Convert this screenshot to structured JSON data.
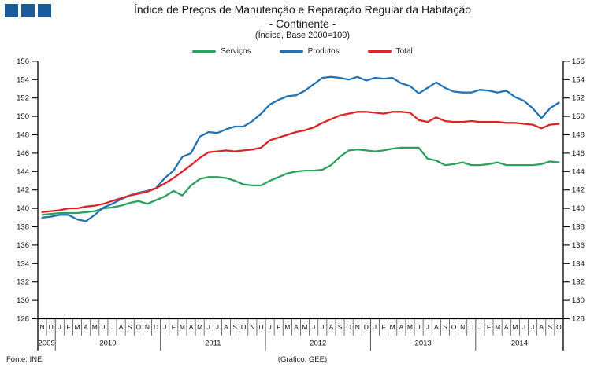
{
  "header": {
    "title_line1": "Índice de Preços de Manutenção e Reparação Regular da Habitação",
    "title_line2": "- Continente -",
    "subtitle": "(Índice, Base 2000=100)",
    "logo_color": "#1b5b97"
  },
  "footer": {
    "source": "Fonte: INE",
    "credit": "(Gráfico: GEE)"
  },
  "chart_data": {
    "type": "line",
    "title": "Índice de Preços de Manutenção e Reparação Regular da Habitação - Continente",
    "subtitle": "(Índice, Base 2000=100)",
    "ylim": [
      128,
      156
    ],
    "ytick_step": 2,
    "grid": false,
    "legend_position": "top-center",
    "x_months": [
      "N",
      "D",
      "J",
      "F",
      "M",
      "A",
      "M",
      "J",
      "J",
      "A",
      "S",
      "O",
      "N",
      "D",
      "J",
      "F",
      "M",
      "A",
      "M",
      "J",
      "J",
      "A",
      "S",
      "O",
      "N",
      "D",
      "J",
      "F",
      "M",
      "A",
      "M",
      "J",
      "J",
      "A",
      "S",
      "O",
      "N",
      "D",
      "J",
      "F",
      "M",
      "A",
      "M",
      "J",
      "J",
      "A",
      "S",
      "O",
      "N",
      "D",
      "J",
      "F",
      "M",
      "A",
      "M",
      "J",
      "J",
      "A",
      "S",
      "O"
    ],
    "x_years": [
      {
        "label": "2009",
        "months": 2
      },
      {
        "label": "2010",
        "months": 12
      },
      {
        "label": "2011",
        "months": 12
      },
      {
        "label": "2012",
        "months": 12
      },
      {
        "label": "2013",
        "months": 12
      },
      {
        "label": "2014",
        "months": 10
      }
    ],
    "series": [
      {
        "name": "Serviços",
        "color": "#2aa15d",
        "values": [
          139.3,
          139.4,
          139.5,
          139.5,
          139.5,
          139.6,
          139.7,
          140.0,
          140.1,
          140.3,
          140.6,
          140.8,
          140.5,
          140.9,
          141.3,
          141.9,
          141.4,
          142.5,
          143.2,
          143.4,
          143.4,
          143.3,
          143.0,
          142.6,
          142.5,
          142.5,
          143.0,
          143.4,
          143.8,
          144.0,
          144.1,
          144.1,
          144.2,
          144.7,
          145.6,
          146.3,
          146.4,
          146.3,
          146.2,
          146.3,
          146.5,
          146.6,
          146.6,
          146.6,
          145.4,
          145.2,
          144.7,
          144.8,
          145.0,
          144.7,
          144.7,
          144.8,
          145.0,
          144.7,
          144.7,
          144.7,
          144.7,
          144.8,
          145.1,
          145.0
        ]
      },
      {
        "name": "Produtos",
        "color": "#2273b4",
        "values": [
          139.0,
          139.1,
          139.3,
          139.3,
          138.8,
          138.6,
          139.3,
          140.1,
          140.5,
          141.0,
          141.4,
          141.7,
          141.9,
          142.2,
          143.3,
          144.1,
          145.6,
          146.0,
          147.8,
          148.3,
          148.2,
          148.6,
          148.9,
          148.9,
          149.5,
          150.3,
          151.3,
          151.8,
          152.2,
          152.3,
          152.8,
          153.5,
          154.2,
          154.3,
          154.2,
          154.0,
          154.3,
          153.9,
          154.2,
          154.1,
          154.2,
          153.6,
          153.3,
          152.5,
          153.1,
          153.7,
          153.1,
          152.7,
          152.6,
          152.6,
          152.9,
          152.8,
          152.6,
          152.8,
          152.1,
          151.7,
          150.9,
          149.8,
          150.9,
          151.5
        ]
      },
      {
        "name": "Total",
        "color": "#dc2424",
        "values": [
          139.6,
          139.7,
          139.8,
          140.0,
          140.0,
          140.2,
          140.3,
          140.5,
          140.8,
          141.1,
          141.4,
          141.6,
          141.8,
          142.2,
          142.7,
          143.3,
          144.0,
          144.7,
          145.5,
          146.1,
          146.2,
          146.3,
          146.2,
          146.3,
          146.4,
          146.6,
          147.4,
          147.7,
          148.0,
          148.3,
          148.5,
          148.8,
          149.3,
          149.7,
          150.1,
          150.3,
          150.5,
          150.5,
          150.4,
          150.3,
          150.5,
          150.5,
          150.4,
          149.6,
          149.4,
          149.9,
          149.5,
          149.4,
          149.4,
          149.5,
          149.4,
          149.4,
          149.4,
          149.3,
          149.3,
          149.2,
          149.1,
          148.7,
          149.1,
          149.2
        ]
      }
    ]
  }
}
